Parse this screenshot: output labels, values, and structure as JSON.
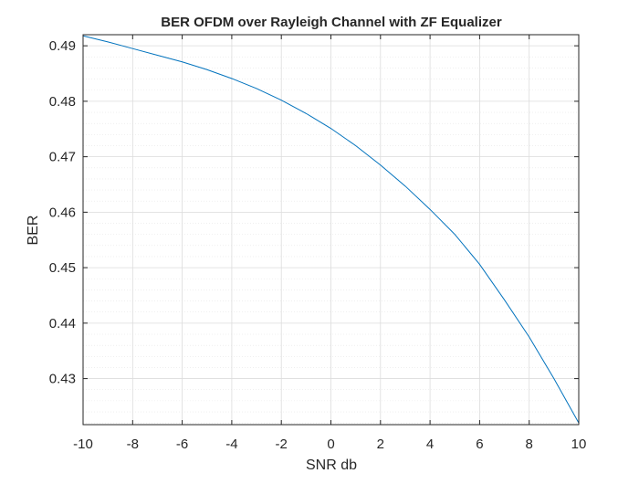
{
  "chart_data": {
    "type": "line",
    "title": "BER OFDM over Rayleigh Channel with ZF Equalizer",
    "xlabel": "SNR db",
    "ylabel": "BER",
    "xlim": [
      -10,
      10
    ],
    "ylim": [
      0.4217,
      0.492
    ],
    "xticks": [
      "-10",
      "-8",
      "-6",
      "-4",
      "-2",
      "0",
      "2",
      "4",
      "6",
      "8",
      "10"
    ],
    "yticks": [
      "0.43",
      "0.44",
      "0.45",
      "0.46",
      "0.47",
      "0.48",
      "0.49"
    ],
    "grid": true,
    "minor_grid": true,
    "series": [
      {
        "x": [
          -10,
          -9,
          -8,
          -7,
          -6,
          -5,
          -4,
          -3,
          -2,
          -1,
          0,
          1,
          2,
          3,
          4,
          5,
          6,
          7,
          8,
          9,
          10
        ],
        "y": [
          0.4918,
          0.4907,
          0.4895,
          0.4883,
          0.4871,
          0.4857,
          0.4841,
          0.4823,
          0.4802,
          0.4778,
          0.4751,
          0.472,
          0.4685,
          0.4647,
          0.4605,
          0.456,
          0.4506,
          0.4442,
          0.4375,
          0.43,
          0.422
        ],
        "color": "#0072bd"
      }
    ]
  }
}
